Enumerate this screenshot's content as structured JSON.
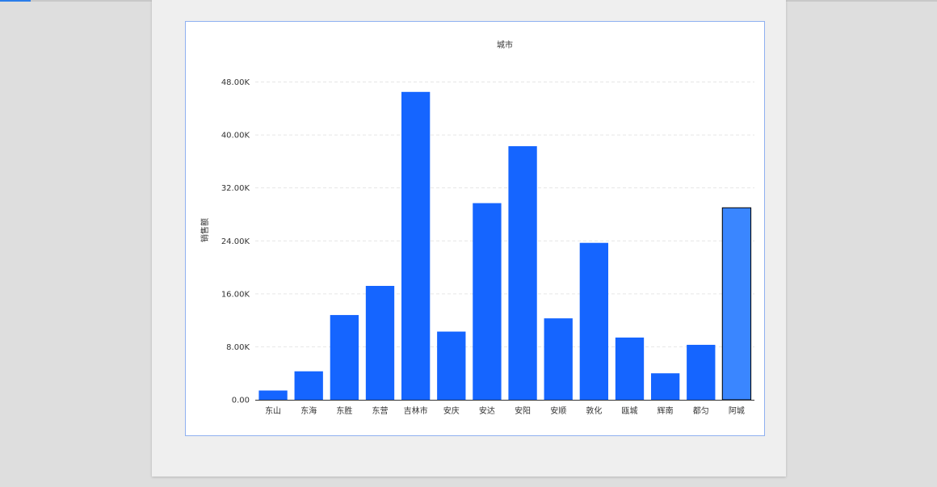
{
  "chart_data": {
    "type": "bar",
    "title": "城市",
    "xlabel": "",
    "ylabel": "销售额",
    "categories": [
      "东山",
      "东海",
      "东胜",
      "东营",
      "吉林市",
      "安庆",
      "安达",
      "安阳",
      "安顺",
      "敦化",
      "瓯城",
      "辉南",
      "都匀",
      "阿城"
    ],
    "values": [
      1400,
      4300,
      12800,
      17200,
      46500,
      10300,
      29700,
      38300,
      12300,
      23700,
      9400,
      4000,
      8300,
      29000
    ],
    "ylim": [
      0,
      50000
    ],
    "yticks": [
      0,
      8000,
      16000,
      24000,
      32000,
      40000,
      48000
    ],
    "ytick_labels": [
      "0.00",
      "8.00K",
      "16.00K",
      "24.00K",
      "32.00K",
      "40.00K",
      "48.00K"
    ],
    "grid": true,
    "highlighted_category": "阿城",
    "colors": {
      "bar": "#1565ff",
      "bar_highlight": "#3a86ff",
      "highlight_stroke": "#000000",
      "grid": "#e6e6e6",
      "axis": "#333333",
      "text": "#333333"
    }
  }
}
